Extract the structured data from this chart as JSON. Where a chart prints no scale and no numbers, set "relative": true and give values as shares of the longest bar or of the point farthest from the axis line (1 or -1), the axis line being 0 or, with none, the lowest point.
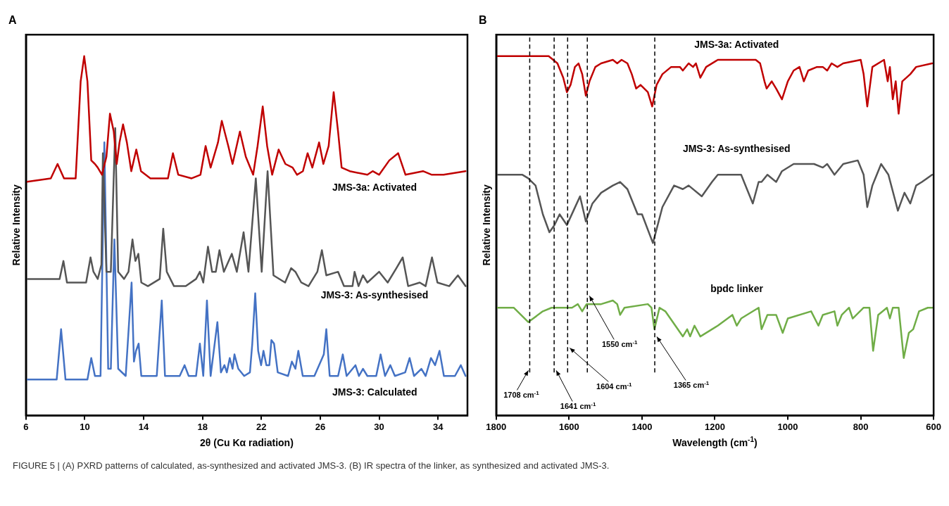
{
  "chart_data": [
    {
      "type": "line",
      "title": "A",
      "xlabel": "2θ (Cu Kα radiation)",
      "ylabel": "Relative Intensity",
      "relative": true,
      "marker": "none",
      "xlim": [
        6,
        36
      ],
      "xticks": [
        6,
        10,
        14,
        18,
        22,
        26,
        30,
        34
      ],
      "annotations": [
        "FIGURE 5 | (A) PXRD patterns of calculated, as-synthesized and activated JMS-3. (B) IR spectra of the linker, as synthesized and activated JMS-3."
      ],
      "series": [
        {
          "name": "JMS-3a: Activated",
          "color": "#c00000",
          "x": [
            6.0,
            7.69,
            8.15,
            8.59,
            9.38,
            9.72,
            9.96,
            10.18,
            10.44,
            10.69,
            10.88,
            11.17,
            11.47,
            11.71,
            11.97,
            12.17,
            12.36,
            12.6,
            12.86,
            13.16,
            13.5,
            13.82,
            14.46,
            15.65,
            15.99,
            16.35,
            17.26,
            17.86,
            18.21,
            18.55,
            19.05,
            19.31,
            19.75,
            20.04,
            20.54,
            20.94,
            21.44,
            21.74,
            22.09,
            22.39,
            22.73,
            23.17,
            23.63,
            24.12,
            24.42,
            24.82,
            25.14,
            25.46,
            25.92,
            26.21,
            26.57,
            26.91,
            27.21,
            27.45,
            28.0,
            29.2,
            29.56,
            30.0,
            30.69,
            31.29,
            31.79,
            32.98,
            33.58,
            34.38,
            35.87
          ],
          "values": [
            0.65,
            0.66,
            0.7,
            0.66,
            0.66,
            0.93,
            1.0,
            0.93,
            0.71,
            0.7,
            0.69,
            0.67,
            0.72,
            0.84,
            0.79,
            0.7,
            0.76,
            0.81,
            0.76,
            0.68,
            0.74,
            0.68,
            0.66,
            0.66,
            0.73,
            0.67,
            0.66,
            0.67,
            0.75,
            0.69,
            0.76,
            0.82,
            0.75,
            0.7,
            0.79,
            0.72,
            0.67,
            0.75,
            0.86,
            0.75,
            0.67,
            0.74,
            0.7,
            0.69,
            0.67,
            0.68,
            0.73,
            0.69,
            0.76,
            0.7,
            0.75,
            0.9,
            0.79,
            0.69,
            0.68,
            0.67,
            0.68,
            0.67,
            0.71,
            0.73,
            0.67,
            0.68,
            0.67,
            0.67,
            0.68
          ]
        },
        {
          "name": "JMS-3: As-synthesised",
          "color": "#555555",
          "x": [
            6.0,
            7.29,
            8.29,
            8.55,
            8.79,
            10.09,
            10.39,
            10.59,
            10.88,
            11.13,
            11.23,
            11.47,
            11.77,
            12.07,
            12.27,
            12.67,
            12.97,
            13.24,
            13.44,
            13.64,
            13.84,
            14.29,
            15.09,
            15.33,
            15.57,
            16.06,
            16.86,
            17.56,
            17.82,
            18.05,
            18.37,
            18.65,
            18.9,
            19.15,
            19.45,
            19.99,
            20.33,
            20.79,
            21.12,
            21.62,
            22.02,
            22.42,
            22.82,
            23.61,
            24.02,
            24.31,
            24.71,
            25.2,
            25.8,
            26.11,
            26.41,
            27.21,
            27.61,
            28.19,
            28.33,
            28.6,
            28.9,
            29.2,
            30.0,
            30.58,
            31.17,
            31.6,
            31.97,
            32.76,
            33.16,
            33.59,
            33.96,
            34.76,
            35.35,
            35.87
          ],
          "values": [
            0.38,
            0.38,
            0.38,
            0.43,
            0.37,
            0.37,
            0.44,
            0.4,
            0.38,
            0.42,
            0.73,
            0.4,
            0.4,
            0.8,
            0.4,
            0.38,
            0.4,
            0.49,
            0.43,
            0.45,
            0.37,
            0.36,
            0.38,
            0.52,
            0.4,
            0.36,
            0.36,
            0.38,
            0.4,
            0.37,
            0.47,
            0.4,
            0.4,
            0.46,
            0.4,
            0.45,
            0.4,
            0.51,
            0.4,
            0.66,
            0.4,
            0.68,
            0.39,
            0.37,
            0.41,
            0.4,
            0.37,
            0.36,
            0.4,
            0.46,
            0.39,
            0.4,
            0.36,
            0.36,
            0.4,
            0.36,
            0.39,
            0.37,
            0.4,
            0.37,
            0.41,
            0.44,
            0.36,
            0.37,
            0.36,
            0.44,
            0.37,
            0.36,
            0.39,
            0.36
          ]
        },
        {
          "name": "JMS-3: Calculated",
          "color": "#4472c4",
          "x": [
            6.0,
            8.09,
            8.39,
            8.69,
            10.18,
            10.44,
            10.69,
            11.07,
            11.33,
            11.59,
            11.77,
            12.01,
            12.27,
            12.78,
            13.18,
            13.34,
            13.48,
            13.66,
            13.84,
            14.89,
            15.23,
            15.45,
            16.45,
            16.78,
            17.06,
            17.56,
            17.82,
            18.05,
            18.3,
            18.55,
            19.01,
            19.25,
            19.49,
            19.65,
            19.85,
            20.04,
            20.17,
            20.43,
            20.83,
            21.22,
            21.38,
            21.58,
            21.78,
            21.98,
            22.14,
            22.34,
            22.54,
            22.68,
            22.86,
            23.11,
            23.81,
            24.07,
            24.31,
            24.51,
            24.81,
            25.6,
            26.24,
            26.41,
            26.64,
            27.21,
            27.53,
            27.79,
            28.39,
            28.63,
            28.9,
            29.2,
            29.8,
            30.1,
            30.4,
            30.76,
            31.07,
            31.77,
            32.07,
            32.37,
            32.87,
            33.16,
            33.52,
            33.8,
            34.1,
            34.4,
            35.15,
            35.55,
            35.87
          ],
          "values": [
            0.1,
            0.1,
            0.24,
            0.1,
            0.1,
            0.16,
            0.11,
            0.11,
            0.76,
            0.13,
            0.13,
            0.49,
            0.13,
            0.11,
            0.37,
            0.15,
            0.18,
            0.2,
            0.11,
            0.11,
            0.32,
            0.11,
            0.11,
            0.14,
            0.11,
            0.11,
            0.2,
            0.11,
            0.32,
            0.11,
            0.26,
            0.12,
            0.14,
            0.12,
            0.16,
            0.13,
            0.17,
            0.13,
            0.11,
            0.12,
            0.2,
            0.34,
            0.18,
            0.14,
            0.18,
            0.14,
            0.14,
            0.21,
            0.2,
            0.12,
            0.11,
            0.15,
            0.13,
            0.18,
            0.11,
            0.11,
            0.17,
            0.24,
            0.11,
            0.11,
            0.17,
            0.11,
            0.14,
            0.11,
            0.13,
            0.11,
            0.11,
            0.17,
            0.11,
            0.14,
            0.11,
            0.12,
            0.16,
            0.11,
            0.13,
            0.11,
            0.16,
            0.14,
            0.18,
            0.11,
            0.11,
            0.14,
            0.11
          ]
        }
      ]
    },
    {
      "type": "line",
      "title": "B",
      "xlabel": "Wavelength (cm$^{-1}$)",
      "ylabel": "Relative Intensity",
      "relative": true,
      "marker": "none",
      "xlim": [
        1800,
        600
      ],
      "xticks": [
        1800,
        1600,
        1400,
        1200,
        1000,
        800,
        600
      ],
      "ref_lines": [
        {
          "axis": "x",
          "value": 1708,
          "label": "1708 cm$^{-1}$",
          "color": "#000000",
          "line_style": "dashed"
        },
        {
          "axis": "x",
          "value": 1641,
          "label": "1641 cm$^{-1}$",
          "color": "#000000",
          "line_style": "dashed"
        },
        {
          "axis": "x",
          "value": 1604,
          "label": "1604 cm$^{-1}$",
          "color": "#000000",
          "line_style": "dashed"
        },
        {
          "axis": "x",
          "value": 1550,
          "label": "1550 cm$^{-1}$",
          "color": "#000000",
          "line_style": "dashed"
        },
        {
          "axis": "x",
          "value": 1365,
          "label": "1365 cm$^{-1}$",
          "color": "#000000",
          "line_style": "dashed"
        }
      ],
      "series": [
        {
          "name": "JMS-3a: Activated",
          "color": "#c00000",
          "x": [
            1800,
            1656,
            1632,
            1616,
            1606,
            1596,
            1584,
            1574,
            1564,
            1554,
            1544,
            1528,
            1512,
            1480,
            1468,
            1456,
            1440,
            1428,
            1416,
            1404,
            1384,
            1372,
            1360,
            1344,
            1320,
            1296,
            1288,
            1272,
            1260,
            1252,
            1240,
            1224,
            1192,
            1136,
            1088,
            1076,
            1064,
            1058,
            1044,
            1032,
            1016,
            1000,
            984,
            968,
            956,
            944,
            920,
            904,
            892,
            880,
            864,
            848,
            800,
            792,
            782,
            768,
            736,
            726,
            720,
            712,
            704,
            696,
            686,
            664,
            648,
            604
          ],
          "values": [
            1.0,
            1.0,
            0.98,
            0.94,
            0.9,
            0.92,
            0.97,
            0.98,
            0.95,
            0.89,
            0.93,
            0.97,
            0.98,
            0.99,
            0.98,
            0.99,
            0.98,
            0.95,
            0.91,
            0.92,
            0.9,
            0.86,
            0.92,
            0.95,
            0.97,
            0.97,
            0.96,
            0.98,
            0.97,
            0.98,
            0.94,
            0.97,
            0.99,
            0.99,
            0.99,
            0.98,
            0.93,
            0.91,
            0.93,
            0.91,
            0.88,
            0.93,
            0.96,
            0.97,
            0.93,
            0.96,
            0.97,
            0.97,
            0.96,
            0.98,
            0.97,
            0.98,
            0.99,
            0.95,
            0.86,
            0.97,
            0.99,
            0.93,
            0.97,
            0.88,
            0.93,
            0.84,
            0.93,
            0.95,
            0.97,
            0.98
          ]
        },
        {
          "name": "JMS-3: As-synthesised",
          "color": "#555555",
          "x": [
            1800,
            1728,
            1712,
            1692,
            1672,
            1654,
            1640,
            1626,
            1606,
            1588,
            1570,
            1554,
            1536,
            1512,
            1480,
            1460,
            1440,
            1412,
            1400,
            1370,
            1344,
            1312,
            1288,
            1272,
            1236,
            1208,
            1192,
            1136,
            1128,
            1096,
            1080,
            1072,
            1056,
            1032,
            1016,
            984,
            928,
            904,
            892,
            872,
            848,
            808,
            792,
            782,
            768,
            744,
            724,
            698,
            680,
            664,
            648,
            632,
            604
          ],
          "values": [
            0.67,
            0.67,
            0.66,
            0.64,
            0.56,
            0.51,
            0.53,
            0.56,
            0.53,
            0.57,
            0.61,
            0.54,
            0.59,
            0.62,
            0.64,
            0.65,
            0.63,
            0.56,
            0.56,
            0.48,
            0.58,
            0.64,
            0.63,
            0.64,
            0.61,
            0.65,
            0.67,
            0.67,
            0.67,
            0.59,
            0.65,
            0.65,
            0.67,
            0.65,
            0.68,
            0.7,
            0.7,
            0.69,
            0.7,
            0.67,
            0.7,
            0.71,
            0.67,
            0.58,
            0.64,
            0.7,
            0.67,
            0.57,
            0.62,
            0.59,
            0.64,
            0.65,
            0.67
          ]
        },
        {
          "name": "bpdc linker",
          "color": "#70ad47",
          "x": [
            1800,
            1752,
            1712,
            1672,
            1648,
            1608,
            1592,
            1576,
            1564,
            1552,
            1512,
            1480,
            1468,
            1460,
            1448,
            1384,
            1374,
            1366,
            1352,
            1336,
            1288,
            1276,
            1268,
            1256,
            1240,
            1192,
            1152,
            1140,
            1128,
            1080,
            1072,
            1056,
            1032,
            1014,
            1000,
            936,
            916,
            904,
            872,
            864,
            852,
            832,
            822,
            792,
            776,
            766,
            752,
            728,
            720,
            712,
            696,
            682,
            668,
            656,
            640,
            616,
            604
          ],
          "values": [
            0.3,
            0.3,
            0.26,
            0.29,
            0.3,
            0.3,
            0.3,
            0.31,
            0.29,
            0.31,
            0.31,
            0.32,
            0.31,
            0.28,
            0.3,
            0.31,
            0.3,
            0.24,
            0.3,
            0.29,
            0.22,
            0.24,
            0.22,
            0.25,
            0.22,
            0.25,
            0.28,
            0.25,
            0.27,
            0.3,
            0.24,
            0.28,
            0.28,
            0.23,
            0.27,
            0.29,
            0.25,
            0.28,
            0.29,
            0.25,
            0.28,
            0.3,
            0.27,
            0.3,
            0.3,
            0.18,
            0.28,
            0.3,
            0.27,
            0.3,
            0.3,
            0.16,
            0.23,
            0.24,
            0.29,
            0.3,
            0.3
          ]
        }
      ]
    }
  ]
}
